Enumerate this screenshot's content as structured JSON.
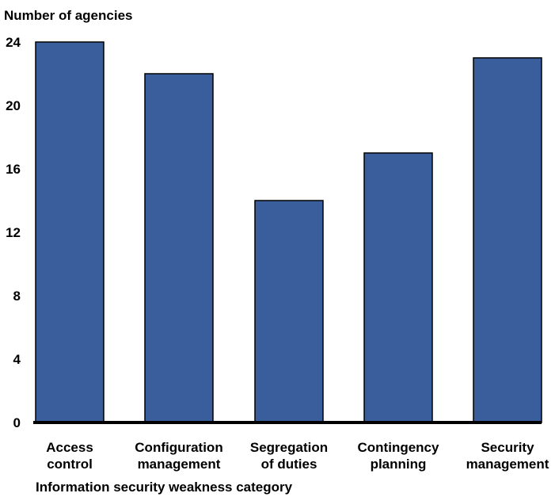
{
  "chart_data": {
    "type": "bar",
    "ylabel": "Number of agencies",
    "xlabel": "Information security weakness category",
    "ylim": [
      0,
      24
    ],
    "yticks": [
      0,
      4,
      8,
      12,
      16,
      20,
      24
    ],
    "grid": false,
    "categories": [
      [
        "Access",
        "control"
      ],
      [
        "Configuration",
        "management"
      ],
      [
        "Segregation",
        "of duties"
      ],
      [
        "Contingency",
        "planning"
      ],
      [
        "Security",
        "management"
      ]
    ],
    "values": [
      24,
      22,
      14,
      17,
      23
    ],
    "bar_color": "#3a5e9c",
    "bar_edge_color": "#000000"
  }
}
